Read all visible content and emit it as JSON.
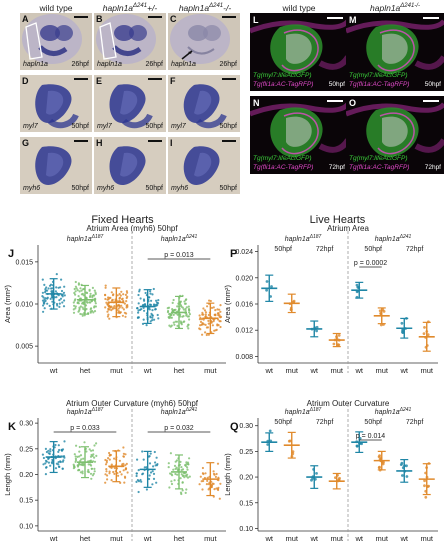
{
  "ish": {
    "columns": [
      "wild type",
      "hapln1a",
      "hapln1a"
    ],
    "column_sups": [
      "",
      "Δ241",
      "Δ241"
    ],
    "column_suffix": [
      "",
      "+/-",
      "-/-"
    ],
    "panels": [
      {
        "letter": "A",
        "gene": "hapln1a",
        "stage": "26hpf"
      },
      {
        "letter": "B",
        "gene": "hapln1a",
        "stage": "26hpf"
      },
      {
        "letter": "C",
        "gene": "hapln1a",
        "stage": "26hpf"
      },
      {
        "letter": "D",
        "gene": "myl7",
        "stage": "50hpf"
      },
      {
        "letter": "E",
        "gene": "myl7",
        "stage": "50hpf"
      },
      {
        "letter": "F",
        "gene": "myl7",
        "stage": "50hpf"
      },
      {
        "letter": "G",
        "gene": "myh6",
        "stage": "50hpf"
      },
      {
        "letter": "H",
        "gene": "myh6",
        "stage": "50hpf"
      },
      {
        "letter": "I",
        "gene": "myh6",
        "stage": "50hpf"
      }
    ]
  },
  "fluor": {
    "columns": [
      "wild type",
      "hapln1a"
    ],
    "column_sups": [
      "",
      "Δ241-/-"
    ],
    "panels": [
      {
        "letter": "L",
        "tg1": "Tg(myl7:lifeActGFP)",
        "tg2": "Tg(fli1a:AC-TagRFP)",
        "stage": "50hpf"
      },
      {
        "letter": "M",
        "tg1": "Tg(myl7:lifeActGFP)",
        "tg2": "Tg(fli1a:AC-TagRFP)",
        "stage": "50hpf"
      },
      {
        "letter": "N",
        "tg1": "Tg(myl7:lifeActGFP)",
        "tg2": "Tg(fli1a:AC-TagRFP)",
        "stage": "72hpf"
      },
      {
        "letter": "O",
        "tg1": "Tg(myl7:lifeActGFP)",
        "tg2": "Tg(fli1a:AC-TagRFP)",
        "stage": "72hpf"
      }
    ]
  },
  "section_titles": {
    "fixed": "Fixed Hearts",
    "live": "Live Hearts"
  },
  "colors": {
    "wt": "#1f86a6",
    "het": "#7cbf6e",
    "mut": "#e08a2c",
    "green": "#3bd13b",
    "magenta": "#e04ac8"
  },
  "chart_data": [
    {
      "panel": "J",
      "type": "scatter",
      "title": "Atrium Area (myh6) 50hpf",
      "ylabel": "Area (mm²)",
      "ylim": [
        0.003,
        0.017
      ],
      "yticks": [
        0.005,
        0.01,
        0.015
      ],
      "groups": [
        {
          "name": "hapln1aΔ187",
          "categories": [
            "wt",
            "het",
            "mut"
          ],
          "means": [
            0.0112,
            0.0105,
            0.0102
          ],
          "sd": [
            0.0018,
            0.0017,
            0.0017
          ]
        },
        {
          "name": "hapln1aΔ241",
          "categories": [
            "wt",
            "het",
            "mut"
          ],
          "means": [
            0.0097,
            0.009,
            0.0083
          ],
          "sd": [
            0.002,
            0.0019,
            0.0018
          ]
        }
      ],
      "annotations": [
        {
          "group": 1,
          "from": 0,
          "to": 2,
          "text": "p = 0.013"
        }
      ]
    },
    {
      "panel": "K",
      "type": "scatter",
      "title": "Atrium Outer Curvature (myh6) 50hpf",
      "ylabel": "Length (mm)",
      "ylim": [
        0.09,
        0.31
      ],
      "yticks": [
        0.1,
        0.15,
        0.2,
        0.25,
        0.3
      ],
      "groups": [
        {
          "name": "hapln1aΔ187",
          "categories": [
            "wt",
            "het",
            "mut"
          ],
          "means": [
            0.234,
            0.224,
            0.216
          ],
          "sd": [
            0.03,
            0.03,
            0.03
          ]
        },
        {
          "name": "hapln1aΔ241",
          "categories": [
            "wt",
            "het",
            "mut"
          ],
          "means": [
            0.21,
            0.205,
            0.191
          ],
          "sd": [
            0.035,
            0.033,
            0.032
          ]
        }
      ],
      "annotations": [
        {
          "group": 0,
          "from": 0,
          "to": 2,
          "text": "p = 0.033"
        },
        {
          "group": 1,
          "from": 0,
          "to": 2,
          "text": "p = 0.032"
        }
      ]
    },
    {
      "panel": "P",
      "type": "scatter",
      "title": "Atrium Area",
      "ylabel": "Area (mm²)",
      "ylim": [
        0.007,
        0.025
      ],
      "yticks": [
        0.008,
        0.012,
        0.016,
        0.02,
        0.024
      ],
      "groups": [
        {
          "name": "hapln1aΔ187",
          "stages": [
            "50hpf",
            "72hpf"
          ],
          "categories": [
            "wt",
            "mut",
            "wt",
            "mut"
          ],
          "means": [
            0.0184,
            0.0161,
            0.0122,
            0.0105
          ],
          "sd": [
            0.002,
            0.0014,
            0.0012,
            0.001
          ]
        },
        {
          "name": "hapln1aΔ241",
          "stages": [
            "50hpf",
            "72hpf"
          ],
          "categories": [
            "wt",
            "mut",
            "wt",
            "mut"
          ],
          "means": [
            0.0181,
            0.0142,
            0.0123,
            0.011
          ],
          "sd": [
            0.0012,
            0.0012,
            0.0015,
            0.0022
          ]
        }
      ],
      "annotations": [
        {
          "group": 1,
          "from": 0,
          "to": 1,
          "text": "p = 0.0002"
        }
      ]
    },
    {
      "panel": "Q",
      "type": "scatter",
      "title": "Atrium Outer Curvature",
      "ylabel": "Length (mm)",
      "ylim": [
        0.095,
        0.315
      ],
      "yticks": [
        0.1,
        0.15,
        0.2,
        0.25,
        0.3
      ],
      "groups": [
        {
          "name": "hapln1aΔ187",
          "stages": [
            "50hpf",
            "72hpf"
          ],
          "categories": [
            "wt",
            "mut",
            "wt",
            "mut"
          ],
          "means": [
            0.268,
            0.262,
            0.2,
            0.192
          ],
          "sd": [
            0.018,
            0.025,
            0.022,
            0.015
          ]
        },
        {
          "name": "hapln1aΔ241",
          "stages": [
            "50hpf",
            "72hpf"
          ],
          "categories": [
            "wt",
            "mut",
            "wt",
            "mut"
          ],
          "means": [
            0.268,
            0.232,
            0.212,
            0.196
          ],
          "sd": [
            0.02,
            0.018,
            0.022,
            0.03
          ]
        }
      ],
      "annotations": [
        {
          "group": 1,
          "from": 0,
          "to": 1,
          "text": "p = 0.014"
        }
      ]
    }
  ]
}
